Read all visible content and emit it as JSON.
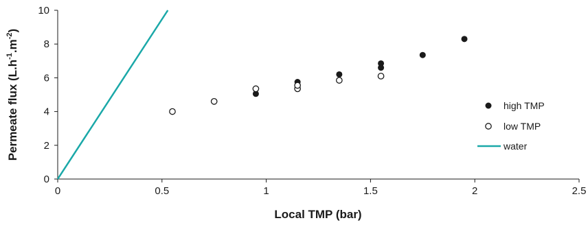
{
  "chart_data": {
    "type": "scatter",
    "xlabel": "Local TMP (bar)",
    "ylabel": "Permeate flux (L.h-1.m-2)",
    "xlim": [
      0,
      2.5
    ],
    "ylim": [
      0,
      10
    ],
    "xticks": [
      0,
      0.5,
      1,
      1.5,
      2,
      2.5
    ],
    "xtick_labels": [
      "0",
      "0.5",
      "1",
      "1.5",
      "2",
      "2.5"
    ],
    "yticks": [
      0,
      2,
      4,
      6,
      8,
      10
    ],
    "ytick_labels": [
      "0",
      "2",
      "4",
      "6",
      "8",
      "10"
    ],
    "grid": false,
    "legend_position": "right",
    "series": [
      {
        "name": "high TMP",
        "marker": "filled-circle",
        "color": "#1a1a1a",
        "x": [
          0.95,
          1.15,
          1.35,
          1.55,
          1.55,
          1.75,
          1.95
        ],
        "y": [
          5.05,
          5.75,
          6.2,
          6.6,
          6.85,
          7.35,
          8.3
        ]
      },
      {
        "name": "low TMP",
        "marker": "open-circle",
        "color": "#1a1a1a",
        "x": [
          0.55,
          0.75,
          0.95,
          1.15,
          1.15,
          1.35,
          1.55
        ],
        "y": [
          4.0,
          4.6,
          5.35,
          5.35,
          5.55,
          5.85,
          6.1
        ]
      },
      {
        "name": "water",
        "marker": "line",
        "color": "#1aa8a8",
        "x": [
          0,
          0.528
        ],
        "y": [
          0,
          10
        ]
      }
    ]
  }
}
